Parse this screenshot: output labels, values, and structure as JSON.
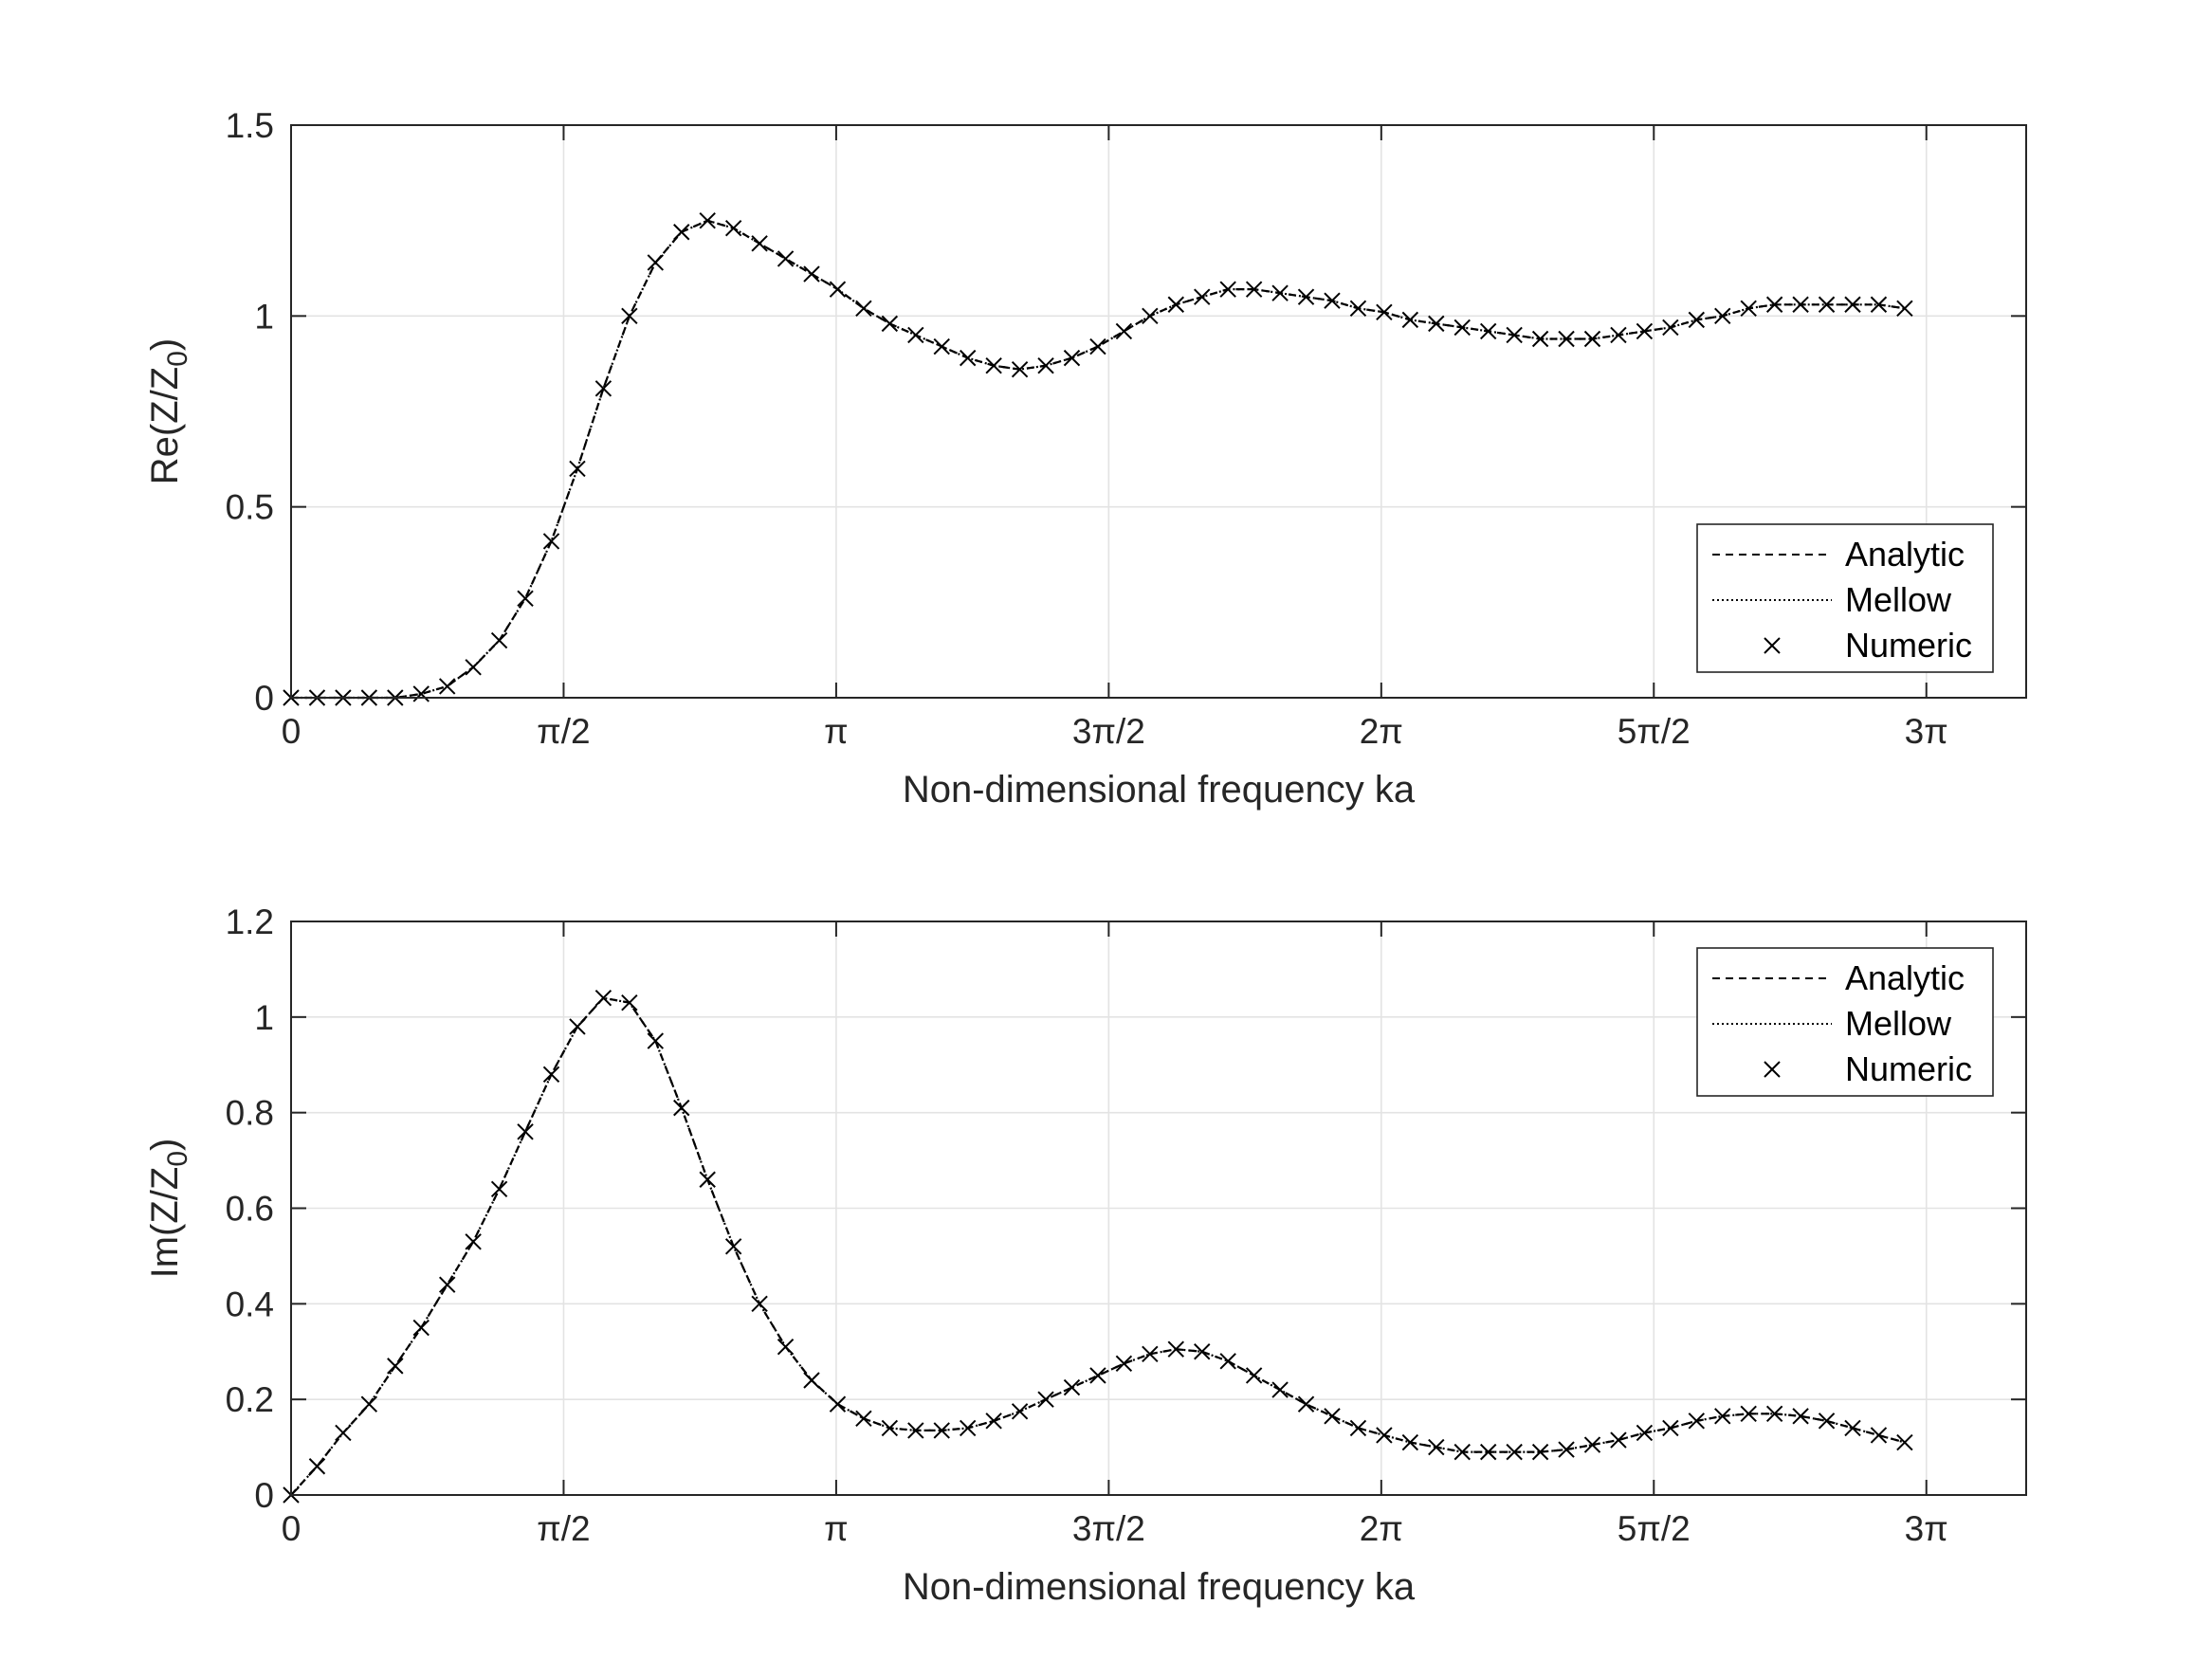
{
  "chart_data": [
    {
      "type": "line",
      "title": "",
      "xlabel": "Non-dimensional frequency ka",
      "ylabel_main": "Re(Z/Z",
      "ylabel_sub": "0",
      "ylabel_close": ")",
      "xlim": [
        0,
        10.0
      ],
      "ylim": [
        0,
        1.5
      ],
      "grid": true,
      "legend_position": "bottom-right",
      "x_ticks": [
        {
          "value": 0,
          "label": "0"
        },
        {
          "value": 1.5708,
          "label": "π/2"
        },
        {
          "value": 3.1416,
          "label": "π"
        },
        {
          "value": 4.7124,
          "label": "3π/2"
        },
        {
          "value": 6.2832,
          "label": "2π"
        },
        {
          "value": 7.854,
          "label": "5π/2"
        },
        {
          "value": 9.4248,
          "label": "3π"
        }
      ],
      "y_ticks": [
        {
          "value": 0,
          "label": "0"
        },
        {
          "value": 0.5,
          "label": "0.5"
        },
        {
          "value": 1,
          "label": "1"
        },
        {
          "value": 1.5,
          "label": "1.5"
        }
      ],
      "series": [
        {
          "name": "Analytic",
          "style": "dashed",
          "x": [
            0,
            0.15,
            0.3,
            0.45,
            0.6,
            0.75,
            0.9,
            1.05,
            1.2,
            1.35,
            1.5,
            1.65,
            1.8,
            1.95,
            2.1,
            2.25,
            2.4,
            2.55,
            2.7,
            2.85,
            3.0,
            3.15,
            3.3,
            3.45,
            3.6,
            3.75,
            3.9,
            4.05,
            4.2,
            4.35,
            4.5,
            4.65,
            4.8,
            4.95,
            5.1,
            5.25,
            5.4,
            5.55,
            5.7,
            5.85,
            6.0,
            6.15,
            6.3,
            6.45,
            6.6,
            6.75,
            6.9,
            7.05,
            7.2,
            7.35,
            7.5,
            7.65,
            7.8,
            7.95,
            8.1,
            8.25,
            8.4,
            8.55,
            8.7,
            8.85,
            9.0,
            9.15,
            9.3
          ],
          "y": [
            0,
            0,
            0,
            0,
            0,
            0.01,
            0.03,
            0.08,
            0.15,
            0.26,
            0.41,
            0.6,
            0.81,
            1.0,
            1.14,
            1.22,
            1.25,
            1.23,
            1.19,
            1.15,
            1.11,
            1.07,
            1.02,
            0.98,
            0.95,
            0.92,
            0.89,
            0.87,
            0.86,
            0.87,
            0.89,
            0.92,
            0.96,
            1.0,
            1.03,
            1.05,
            1.07,
            1.07,
            1.06,
            1.05,
            1.04,
            1.02,
            1.01,
            0.99,
            0.98,
            0.97,
            0.96,
            0.95,
            0.94,
            0.94,
            0.94,
            0.95,
            0.96,
            0.97,
            0.99,
            1.0,
            1.02,
            1.03,
            1.03,
            1.03,
            1.03,
            1.03,
            1.02
          ]
        },
        {
          "name": "Mellow",
          "style": "dotted",
          "x": [
            0,
            0.15,
            0.3,
            0.45,
            0.6,
            0.75,
            0.9,
            1.05,
            1.2,
            1.35,
            1.5,
            1.65,
            1.8,
            1.95,
            2.1,
            2.25,
            2.4,
            2.55,
            2.7,
            2.85,
            3.0,
            3.15,
            3.3,
            3.45,
            3.6,
            3.75,
            3.9,
            4.05,
            4.2,
            4.35,
            4.5,
            4.65,
            4.8,
            4.95,
            5.1,
            5.25,
            5.4,
            5.55,
            5.7,
            5.85,
            6.0,
            6.15,
            6.3,
            6.45,
            6.6,
            6.75,
            6.9,
            7.05,
            7.2,
            7.35,
            7.5,
            7.65,
            7.8,
            7.95,
            8.1,
            8.25,
            8.4,
            8.55,
            8.7,
            8.85,
            9.0,
            9.15,
            9.3
          ],
          "y": [
            0,
            0,
            0,
            0,
            0,
            0.01,
            0.03,
            0.08,
            0.15,
            0.26,
            0.41,
            0.6,
            0.81,
            1.0,
            1.14,
            1.22,
            1.25,
            1.23,
            1.19,
            1.15,
            1.11,
            1.07,
            1.02,
            0.98,
            0.95,
            0.92,
            0.89,
            0.87,
            0.86,
            0.87,
            0.89,
            0.92,
            0.96,
            1.0,
            1.03,
            1.05,
            1.07,
            1.07,
            1.06,
            1.05,
            1.04,
            1.02,
            1.01,
            0.99,
            0.98,
            0.97,
            0.96,
            0.95,
            0.94,
            0.94,
            0.94,
            0.95,
            0.96,
            0.97,
            0.99,
            1.0,
            1.02,
            1.03,
            1.03,
            1.03,
            1.03,
            1.03,
            1.02
          ]
        },
        {
          "name": "Numeric",
          "style": "marker-x",
          "x": [
            0,
            0.15,
            0.3,
            0.45,
            0.6,
            0.75,
            0.9,
            1.05,
            1.2,
            1.35,
            1.5,
            1.65,
            1.8,
            1.95,
            2.1,
            2.25,
            2.4,
            2.55,
            2.7,
            2.85,
            3.0,
            3.15,
            3.3,
            3.45,
            3.6,
            3.75,
            3.9,
            4.05,
            4.2,
            4.35,
            4.5,
            4.65,
            4.8,
            4.95,
            5.1,
            5.25,
            5.4,
            5.55,
            5.7,
            5.85,
            6.0,
            6.15,
            6.3,
            6.45,
            6.6,
            6.75,
            6.9,
            7.05,
            7.2,
            7.35,
            7.5,
            7.65,
            7.8,
            7.95,
            8.1,
            8.25,
            8.4,
            8.55,
            8.7,
            8.85,
            9.0,
            9.15,
            9.3
          ],
          "y": [
            0,
            0,
            0,
            0,
            0,
            0.01,
            0.03,
            0.08,
            0.15,
            0.26,
            0.41,
            0.6,
            0.81,
            1.0,
            1.14,
            1.22,
            1.25,
            1.23,
            1.19,
            1.15,
            1.11,
            1.07,
            1.02,
            0.98,
            0.95,
            0.92,
            0.89,
            0.87,
            0.86,
            0.87,
            0.89,
            0.92,
            0.96,
            1.0,
            1.03,
            1.05,
            1.07,
            1.07,
            1.06,
            1.05,
            1.04,
            1.02,
            1.01,
            0.99,
            0.98,
            0.97,
            0.96,
            0.95,
            0.94,
            0.94,
            0.94,
            0.95,
            0.96,
            0.97,
            0.99,
            1.0,
            1.02,
            1.03,
            1.03,
            1.03,
            1.03,
            1.03,
            1.02
          ]
        }
      ]
    },
    {
      "type": "line",
      "title": "",
      "xlabel": "Non-dimensional frequency ka",
      "ylabel_main": "Im(Z/Z",
      "ylabel_sub": "0",
      "ylabel_close": ")",
      "xlim": [
        0,
        10.0
      ],
      "ylim": [
        0,
        1.2
      ],
      "grid": true,
      "legend_position": "top-right",
      "x_ticks": [
        {
          "value": 0,
          "label": "0"
        },
        {
          "value": 1.5708,
          "label": "π/2"
        },
        {
          "value": 3.1416,
          "label": "π"
        },
        {
          "value": 4.7124,
          "label": "3π/2"
        },
        {
          "value": 6.2832,
          "label": "2π"
        },
        {
          "value": 7.854,
          "label": "5π/2"
        },
        {
          "value": 9.4248,
          "label": "3π"
        }
      ],
      "y_ticks": [
        {
          "value": 0,
          "label": "0"
        },
        {
          "value": 0.2,
          "label": "0.2"
        },
        {
          "value": 0.4,
          "label": "0.4"
        },
        {
          "value": 0.6,
          "label": "0.6"
        },
        {
          "value": 0.8,
          "label": "0.8"
        },
        {
          "value": 1,
          "label": "1"
        },
        {
          "value": 1.2,
          "label": "1.2"
        }
      ],
      "series": [
        {
          "name": "Analytic",
          "style": "dashed",
          "x": [
            0,
            0.15,
            0.3,
            0.45,
            0.6,
            0.75,
            0.9,
            1.05,
            1.2,
            1.35,
            1.5,
            1.65,
            1.8,
            1.95,
            2.1,
            2.25,
            2.4,
            2.55,
            2.7,
            2.85,
            3.0,
            3.15,
            3.3,
            3.45,
            3.6,
            3.75,
            3.9,
            4.05,
            4.2,
            4.35,
            4.5,
            4.65,
            4.8,
            4.95,
            5.1,
            5.25,
            5.4,
            5.55,
            5.7,
            5.85,
            6.0,
            6.15,
            6.3,
            6.45,
            6.6,
            6.75,
            6.9,
            7.05,
            7.2,
            7.35,
            7.5,
            7.65,
            7.8,
            7.95,
            8.1,
            8.25,
            8.4,
            8.55,
            8.7,
            8.85,
            9.0,
            9.15,
            9.3
          ],
          "y": [
            0,
            0.06,
            0.13,
            0.19,
            0.27,
            0.35,
            0.44,
            0.53,
            0.64,
            0.76,
            0.88,
            0.98,
            1.04,
            1.03,
            0.95,
            0.81,
            0.66,
            0.52,
            0.4,
            0.31,
            0.24,
            0.19,
            0.16,
            0.14,
            0.135,
            0.135,
            0.14,
            0.155,
            0.175,
            0.2,
            0.225,
            0.25,
            0.275,
            0.295,
            0.305,
            0.3,
            0.28,
            0.25,
            0.22,
            0.19,
            0.165,
            0.14,
            0.125,
            0.11,
            0.1,
            0.09,
            0.09,
            0.09,
            0.09,
            0.095,
            0.105,
            0.115,
            0.13,
            0.14,
            0.155,
            0.165,
            0.17,
            0.17,
            0.165,
            0.155,
            0.14,
            0.125,
            0.11
          ]
        },
        {
          "name": "Mellow",
          "style": "dotted",
          "x": [
            0,
            0.15,
            0.3,
            0.45,
            0.6,
            0.75,
            0.9,
            1.05,
            1.2,
            1.35,
            1.5,
            1.65,
            1.8,
            1.95,
            2.1,
            2.25,
            2.4,
            2.55,
            2.7,
            2.85,
            3.0,
            3.15,
            3.3,
            3.45,
            3.6,
            3.75,
            3.9,
            4.05,
            4.2,
            4.35,
            4.5,
            4.65,
            4.8,
            4.95,
            5.1,
            5.25,
            5.4,
            5.55,
            5.7,
            5.85,
            6.0,
            6.15,
            6.3,
            6.45,
            6.6,
            6.75,
            6.9,
            7.05,
            7.2,
            7.35,
            7.5,
            7.65,
            7.8,
            7.95,
            8.1,
            8.25,
            8.4,
            8.55,
            8.7,
            8.85,
            9.0,
            9.15,
            9.3
          ],
          "y": [
            0,
            0.06,
            0.13,
            0.19,
            0.27,
            0.35,
            0.44,
            0.53,
            0.64,
            0.76,
            0.88,
            0.98,
            1.04,
            1.03,
            0.95,
            0.81,
            0.66,
            0.52,
            0.4,
            0.31,
            0.24,
            0.19,
            0.16,
            0.14,
            0.135,
            0.135,
            0.14,
            0.155,
            0.175,
            0.2,
            0.225,
            0.25,
            0.275,
            0.295,
            0.305,
            0.3,
            0.28,
            0.25,
            0.22,
            0.19,
            0.165,
            0.14,
            0.125,
            0.11,
            0.1,
            0.09,
            0.09,
            0.09,
            0.09,
            0.095,
            0.105,
            0.115,
            0.13,
            0.14,
            0.155,
            0.165,
            0.17,
            0.17,
            0.165,
            0.155,
            0.14,
            0.125,
            0.11
          ]
        },
        {
          "name": "Numeric",
          "style": "marker-x",
          "x": [
            0,
            0.15,
            0.3,
            0.45,
            0.6,
            0.75,
            0.9,
            1.05,
            1.2,
            1.35,
            1.5,
            1.65,
            1.8,
            1.95,
            2.1,
            2.25,
            2.4,
            2.55,
            2.7,
            2.85,
            3.0,
            3.15,
            3.3,
            3.45,
            3.6,
            3.75,
            3.9,
            4.05,
            4.2,
            4.35,
            4.5,
            4.65,
            4.8,
            4.95,
            5.1,
            5.25,
            5.4,
            5.55,
            5.7,
            5.85,
            6.0,
            6.15,
            6.3,
            6.45,
            6.6,
            6.75,
            6.9,
            7.05,
            7.2,
            7.35,
            7.5,
            7.65,
            7.8,
            7.95,
            8.1,
            8.25,
            8.4,
            8.55,
            8.7,
            8.85,
            9.0,
            9.15,
            9.3
          ],
          "y": [
            0,
            0.06,
            0.13,
            0.19,
            0.27,
            0.35,
            0.44,
            0.53,
            0.64,
            0.76,
            0.88,
            0.98,
            1.04,
            1.03,
            0.95,
            0.81,
            0.66,
            0.52,
            0.4,
            0.31,
            0.24,
            0.19,
            0.16,
            0.14,
            0.135,
            0.135,
            0.14,
            0.155,
            0.175,
            0.2,
            0.225,
            0.25,
            0.275,
            0.295,
            0.305,
            0.3,
            0.28,
            0.25,
            0.22,
            0.19,
            0.165,
            0.14,
            0.125,
            0.11,
            0.1,
            0.09,
            0.09,
            0.09,
            0.09,
            0.095,
            0.105,
            0.115,
            0.13,
            0.14,
            0.155,
            0.165,
            0.17,
            0.17,
            0.165,
            0.155,
            0.14,
            0.125,
            0.11
          ]
        }
      ]
    }
  ]
}
